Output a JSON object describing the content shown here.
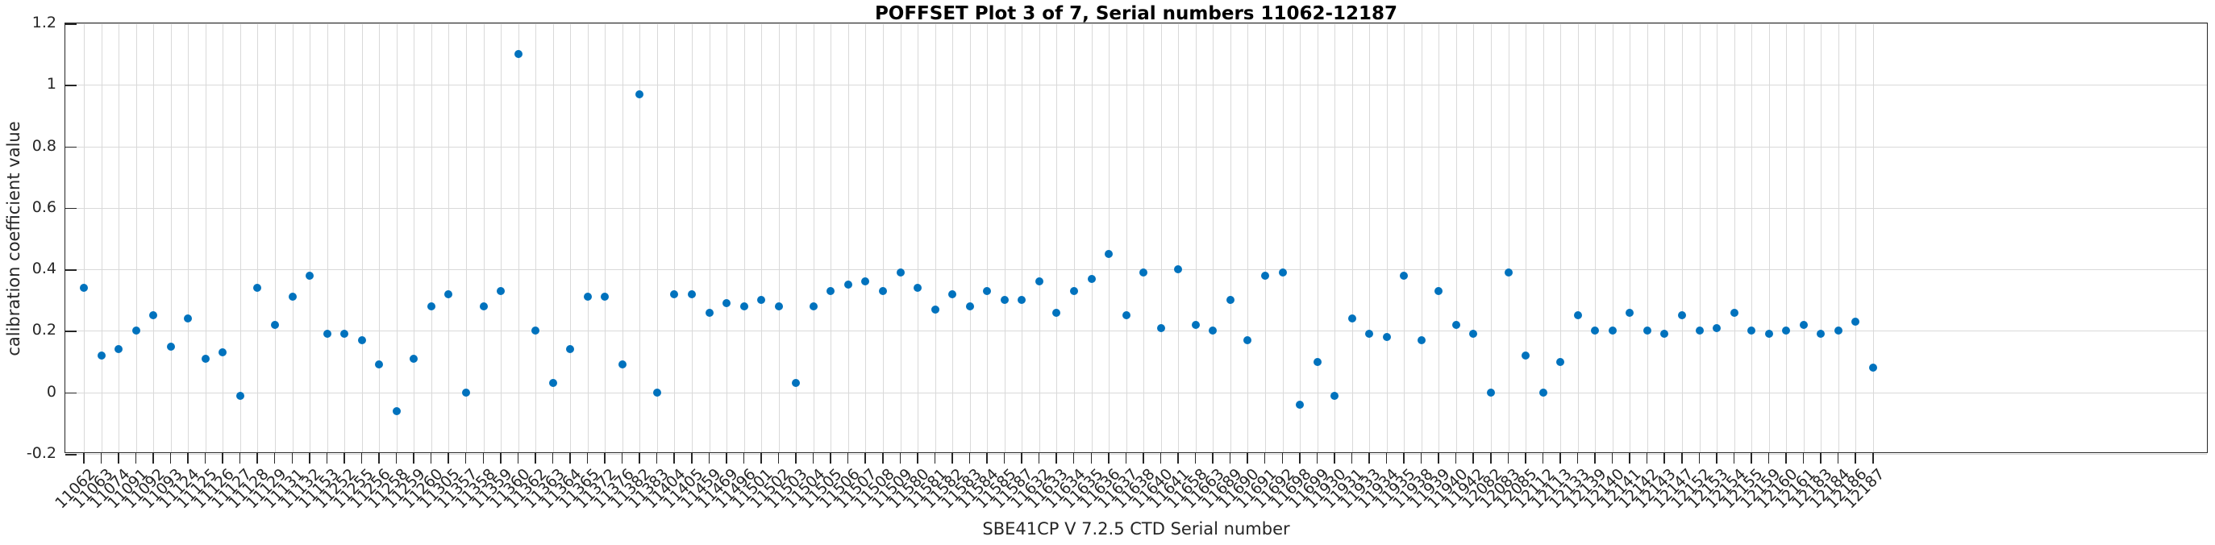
{
  "figure": {
    "title": "POFFSET Plot 3 of 7, Serial numbers 11062-12187"
  },
  "chart_data": {
    "type": "scatter",
    "title": "POFFSET Plot 3 of 7, Serial numbers 11062-12187",
    "xlabel": "SBE41CP V 7.2.5 CTD Serial number",
    "ylabel": "calibration coefficient value",
    "ylim": [
      -0.2,
      1.2
    ],
    "yticks": [
      -0.2,
      0,
      0.2,
      0.4,
      0.6,
      0.8,
      1,
      1.2
    ],
    "ytick_labels": [
      "-0.2",
      "0",
      "0.2",
      "0.4",
      "0.6",
      "0.8",
      "1",
      "1.2"
    ],
    "grid": true,
    "legend": "none",
    "marker_color": "#0072BD",
    "grid_color": "#d9d9d9",
    "axis_color": "#262626",
    "categories": [
      "11062",
      "11063",
      "11074",
      "11091",
      "11092",
      "11093",
      "11124",
      "11125",
      "11126",
      "11127",
      "11128",
      "11129",
      "11131",
      "11132",
      "11153",
      "11252",
      "11255",
      "11256",
      "11258",
      "11259",
      "11260",
      "11305",
      "11357",
      "11358",
      "11359",
      "11360",
      "11362",
      "11363",
      "11364",
      "11365",
      "11372",
      "11376",
      "11382",
      "11383",
      "11404",
      "11405",
      "11459",
      "11469",
      "11496",
      "11501",
      "11502",
      "11503",
      "11504",
      "11505",
      "11506",
      "11507",
      "11508",
      "11509",
      "11580",
      "11581",
      "11582",
      "11583",
      "11584",
      "11585",
      "11587",
      "11632",
      "11633",
      "11634",
      "11635",
      "11636",
      "11637",
      "11638",
      "11640",
      "11641",
      "11658",
      "11663",
      "11689",
      "11690",
      "11691",
      "11692",
      "11698",
      "11699",
      "11930",
      "11931",
      "11933",
      "11934",
      "11935",
      "11938",
      "11939",
      "11940",
      "11942",
      "12082",
      "12083",
      "12085",
      "12112",
      "12113",
      "12133",
      "12139",
      "12140",
      "12141",
      "12142",
      "12143",
      "12147",
      "12152",
      "12153",
      "12154",
      "12155",
      "12159",
      "12160",
      "12161",
      "12183",
      "12184",
      "12186",
      "12187"
    ],
    "values": [
      0.34,
      0.12,
      0.14,
      0.2,
      0.25,
      0.15,
      0.24,
      0.11,
      0.13,
      -0.01,
      0.34,
      0.22,
      0.31,
      0.38,
      0.19,
      0.19,
      0.17,
      0.09,
      -0.06,
      0.11,
      0.28,
      0.32,
      0.0,
      0.28,
      0.33,
      1.1,
      0.2,
      0.03,
      0.14,
      0.31,
      0.31,
      0.09,
      0.97,
      0.0,
      0.32,
      0.32,
      0.26,
      0.29,
      0.28,
      0.3,
      0.28,
      0.03,
      0.28,
      0.33,
      0.35,
      0.36,
      0.33,
      0.39,
      0.34,
      0.27,
      0.32,
      0.28,
      0.33,
      0.3,
      0.3,
      0.36,
      0.26,
      0.33,
      0.37,
      0.45,
      0.25,
      0.39,
      0.21,
      0.4,
      0.22,
      0.2,
      0.3,
      0.17,
      0.38,
      0.39,
      -0.04,
      0.1,
      -0.01,
      0.24,
      0.19,
      0.18,
      0.38,
      0.17,
      0.33,
      0.22,
      0.19,
      0.0,
      0.39,
      0.12,
      0.0,
      0.1,
      0.25,
      0.2,
      0.2,
      0.26,
      0.2,
      0.19,
      0.25,
      0.2,
      0.21,
      0.26,
      0.2,
      0.19,
      0.2,
      0.22,
      0.19,
      0.2,
      0.23,
      0.08
    ]
  }
}
